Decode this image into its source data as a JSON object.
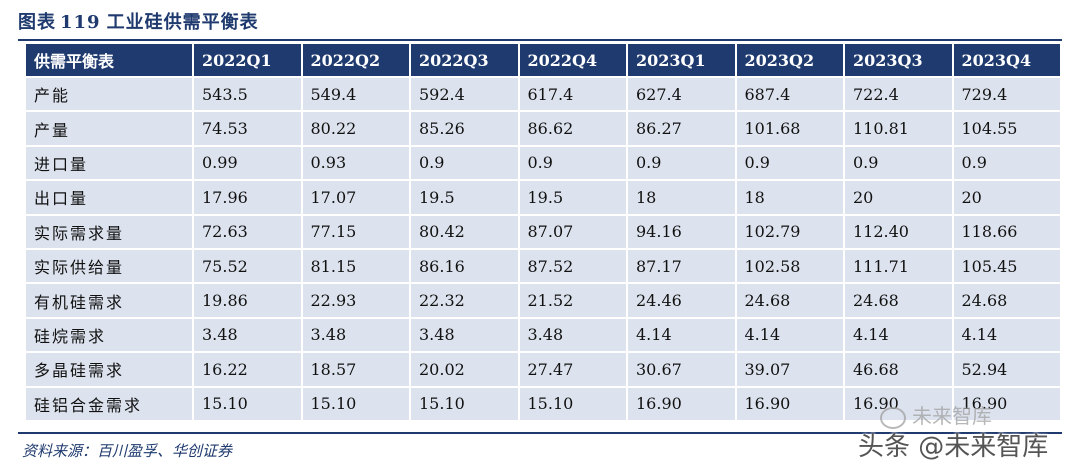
{
  "title": {
    "prefix": "图表",
    "number": "119",
    "text": "工业硅供需平衡表"
  },
  "table": {
    "header": [
      "供需平衡表",
      "2022Q1",
      "2022Q2",
      "2022Q3",
      "2022Q4",
      "2023Q1",
      "2023Q2",
      "2023Q3",
      "2023Q4"
    ],
    "rows": [
      [
        "产能",
        "543.5",
        "549.4",
        "592.4",
        "617.4",
        "627.4",
        "687.4",
        "722.4",
        "729.4"
      ],
      [
        "产量",
        "74.53",
        "80.22",
        "85.26",
        "86.62",
        "86.27",
        "101.68",
        "110.81",
        "104.55"
      ],
      [
        "进口量",
        "0.99",
        "0.93",
        "0.9",
        "0.9",
        "0.9",
        "0.9",
        "0.9",
        "0.9"
      ],
      [
        "出口量",
        "17.96",
        "17.07",
        "19.5",
        "19.5",
        "18",
        "18",
        "20",
        "20"
      ],
      [
        "实际需求量",
        "72.63",
        "77.15",
        "80.42",
        "87.07",
        "94.16",
        "102.79",
        "112.40",
        "118.66"
      ],
      [
        "实际供给量",
        "75.52",
        "81.15",
        "86.16",
        "87.52",
        "87.17",
        "102.58",
        "111.71",
        "105.45"
      ],
      [
        "有机硅需求",
        "19.86",
        "22.93",
        "22.32",
        "21.52",
        "24.46",
        "24.68",
        "24.68",
        "24.68"
      ],
      [
        "硅烷需求",
        "3.48",
        "3.48",
        "3.48",
        "3.48",
        "4.14",
        "4.14",
        "4.14",
        "4.14"
      ],
      [
        "多晶硅需求",
        "16.22",
        "18.57",
        "20.02",
        "27.47",
        "30.67",
        "39.07",
        "46.68",
        "52.94"
      ],
      [
        "硅铝合金需求",
        "15.10",
        "15.10",
        "15.10",
        "15.10",
        "16.90",
        "16.90",
        "16.90",
        "16.90"
      ]
    ]
  },
  "source": "资料来源：百川盈孚、华创证券",
  "watermarks": {
    "wechat": "未来智库",
    "toutiao": "头条 @未来智库"
  },
  "colors": {
    "header_bg": "#1f3a6e",
    "cell_bg": "#dde3ee",
    "title_color": "#1f3a6e"
  }
}
